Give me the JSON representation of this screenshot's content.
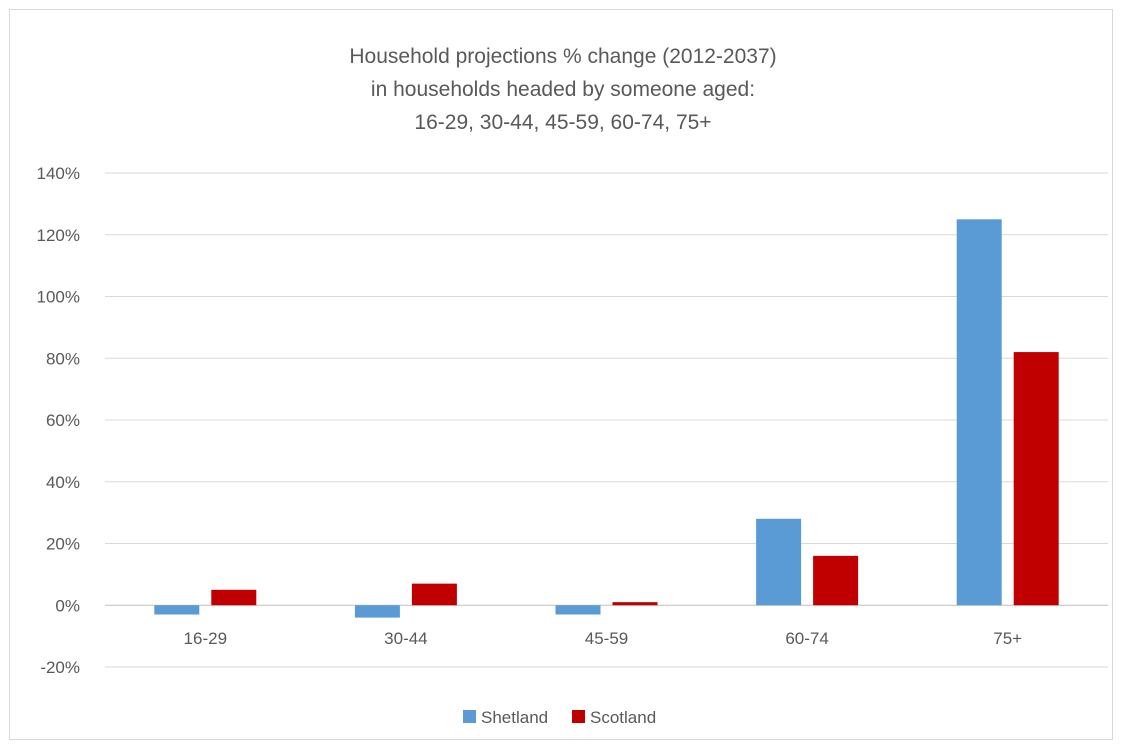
{
  "chart_data": {
    "type": "bar",
    "title_lines": [
      "Household projections % change (2012-2037)",
      "in households headed by someone aged:",
      "16-29, 30-44, 45-59, 60-74, 75+"
    ],
    "categories": [
      "16-29",
      "30-44",
      "45-59",
      "60-74",
      "75+"
    ],
    "series": [
      {
        "name": "Shetland",
        "color": "#5b9bd5",
        "values": [
          -3,
          -4,
          -3,
          28,
          125
        ]
      },
      {
        "name": "Scotland",
        "color": "#c00000",
        "values": [
          5,
          7,
          1,
          16,
          82
        ]
      }
    ],
    "ylim": [
      -20,
      140
    ],
    "ytick_step": 20,
    "y_tick_labels": [
      "-20%",
      "0%",
      "20%",
      "40%",
      "60%",
      "80%",
      "100%",
      "120%",
      "140%"
    ],
    "xlabel": "",
    "ylabel": "",
    "grid": true,
    "legend_position": "bottom"
  }
}
